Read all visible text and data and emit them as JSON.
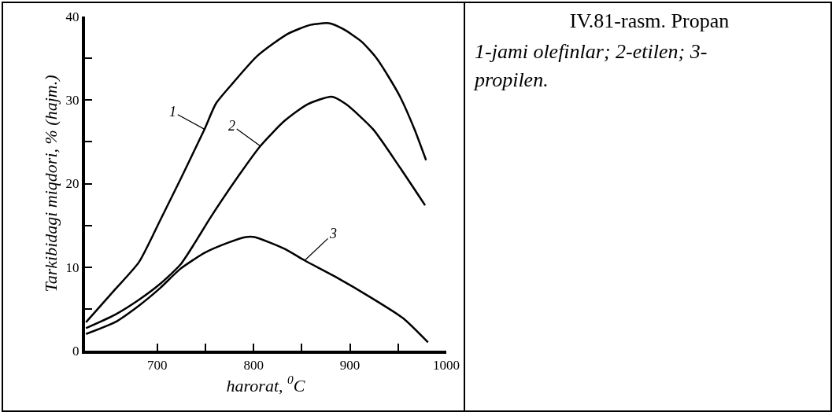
{
  "chart_data": {
    "type": "line",
    "title": "IV.81-rasm. Propan",
    "subtitle": "1-jami olefinlar; 2-etilen; 3- propilen.",
    "xlabel": "harorat, $^{0}$C",
    "ylabel": "Tarkibidagi miqdori, % (hajm.)",
    "xlim": [
      625,
      1000
    ],
    "xticks": [
      700,
      {
        "value": 750,
        "label": null
      },
      800,
      {
        "value": 850,
        "label": null
      },
      900,
      {
        "value": 950,
        "label": null
      },
      1000
    ],
    "ylim": [
      0,
      40
    ],
    "yticks": [
      0,
      {
        "value": 5,
        "label": null
      },
      10,
      {
        "value": 15,
        "label": null
      },
      20,
      {
        "value": 25,
        "label": null
      },
      30,
      {
        "value": 35,
        "label": null
      },
      40
    ],
    "grid": false,
    "marker": "none",
    "line_style": "solid",
    "series": [
      {
        "color": "#000000",
        "x": [
          626,
          656,
          681,
          703,
          724,
          749,
          761,
          779,
          804,
          835,
          859,
          878,
          893,
          912,
          927,
          940,
          952,
          967,
          979
        ],
        "values": [
          3.4,
          7.3,
          10.6,
          15.6,
          20.5,
          26.5,
          29.6,
          32.1,
          35.3,
          37.9,
          39.0,
          39.2,
          38.5,
          37.0,
          35.1,
          32.8,
          30.4,
          26.5,
          22.8
        ]
      },
      {
        "color": "#000000",
        "x": [
          626,
          656,
          681,
          703,
          724,
          739,
          755,
          786,
          807,
          832,
          856,
          881,
          896,
          924,
          952,
          978
        ],
        "values": [
          2.7,
          4.3,
          6.1,
          8.0,
          10.3,
          12.9,
          15.9,
          21.2,
          24.5,
          27.5,
          29.5,
          30.4,
          29.5,
          26.5,
          21.9,
          17.4
        ]
      },
      {
        "color": "#000000",
        "x": [
          626,
          656,
          681,
          703,
          724,
          749,
          773,
          792,
          801,
          832,
          853,
          884,
          924,
          955,
          981
        ],
        "values": [
          2.0,
          3.4,
          5.4,
          7.5,
          9.8,
          11.7,
          12.9,
          13.6,
          13.6,
          12.2,
          10.8,
          8.9,
          6.2,
          3.9,
          1.0
        ]
      }
    ],
    "annotations": [
      {
        "text": "1",
        "x": 749,
        "y": 26.5
      },
      {
        "text": "2",
        "x": 807,
        "y": 24.5
      },
      {
        "text": "3",
        "x": 853,
        "y": 10.8
      }
    ]
  }
}
